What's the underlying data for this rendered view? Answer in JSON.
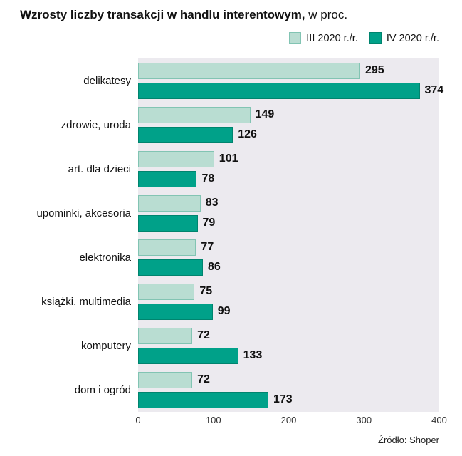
{
  "title": {
    "main": "Wzrosty liczby transakcji w handlu interentowym,",
    "suffix": " w proc."
  },
  "legend": {
    "items": [
      {
        "label": "III 2020 r./r.",
        "color": "#b9ddd2",
        "border": "#82c4b3"
      },
      {
        "label": "IV 2020 r./r.",
        "color": "#00a189",
        "border": "#00846e"
      }
    ]
  },
  "source": "Źródło: Shoper",
  "chart_data": {
    "type": "bar",
    "orientation": "horizontal",
    "title": "Wzrosty liczby transakcji w handlu interentowym, w proc.",
    "categories": [
      "delikatesy",
      "zdrowie, uroda",
      "art. dla dzieci",
      "upominki, akcesoria",
      "elektronika",
      "książki, multimedia",
      "komputery",
      "dom i ogród"
    ],
    "series": [
      {
        "name": "III 2020 r./r.",
        "values": [
          295,
          149,
          101,
          83,
          77,
          75,
          72,
          72
        ]
      },
      {
        "name": "IV 2020 r./r.",
        "values": [
          374,
          126,
          78,
          79,
          86,
          99,
          133,
          173
        ]
      }
    ],
    "xlim": [
      0,
      400
    ],
    "xticks": [
      0,
      100,
      200,
      300,
      400
    ],
    "value_labels": true,
    "grid": false,
    "legend_position": "top-right",
    "plot_background": "#eceaef"
  }
}
